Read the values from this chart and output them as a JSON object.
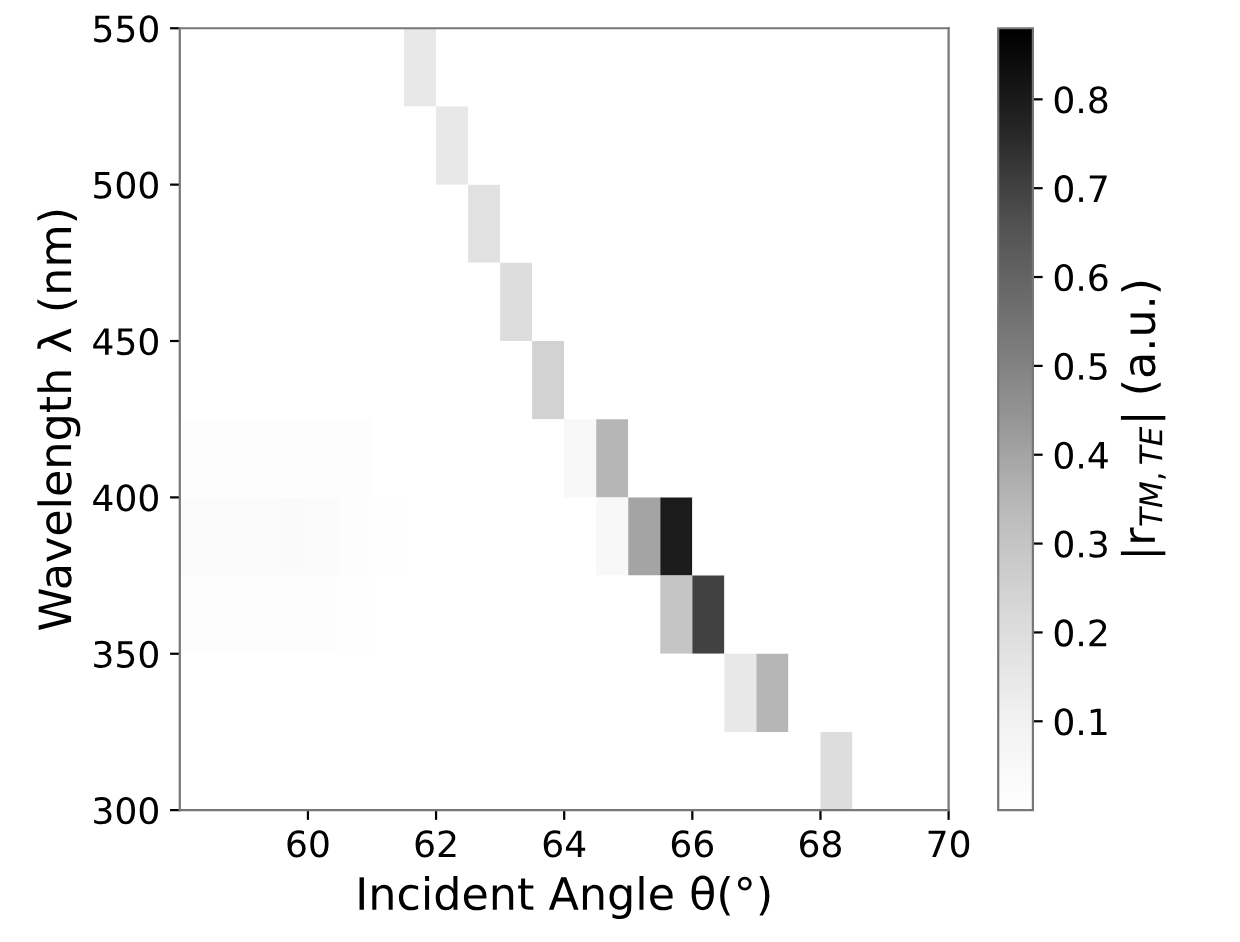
{
  "chart_data": {
    "type": "heatmap",
    "xlabel": "Incident Angle θ(°)",
    "ylabel": "Wavelength λ (nm)",
    "clabel": "|r$_{TM,TE}$| (a.u.)",
    "xlim": [
      58,
      70
    ],
    "xticks": [
      60,
      62,
      64,
      66,
      68,
      70
    ],
    "ylim": [
      300,
      550
    ],
    "yticks": [
      300,
      350,
      400,
      450,
      500,
      550
    ],
    "clim": [
      0,
      0.88
    ],
    "cticks": [
      0.1,
      0.2,
      0.3,
      0.4,
      0.5,
      0.6,
      0.7,
      0.8
    ],
    "cells": [
      [
        0,
        0,
        0,
        0,
        0,
        0,
        0,
        0.15,
        0,
        0,
        0,
        0,
        0,
        0,
        0,
        0,
        0,
        0,
        0,
        0,
        0,
        0,
        0,
        0
      ],
      [
        0,
        0,
        0,
        0,
        0,
        0,
        0,
        0,
        0.15,
        0,
        0,
        0,
        0,
        0,
        0,
        0,
        0,
        0,
        0,
        0,
        0,
        0,
        0,
        0
      ],
      [
        0,
        0,
        0,
        0,
        0,
        0,
        0,
        0,
        0,
        0.18,
        0,
        0,
        0,
        0,
        0,
        0,
        0,
        0,
        0,
        0,
        0,
        0,
        0,
        0
      ],
      [
        0,
        0,
        0,
        0,
        0,
        0,
        0,
        0,
        0,
        0,
        0.2,
        0,
        0,
        0,
        0,
        0,
        0,
        0,
        0,
        0,
        0,
        0,
        0,
        0
      ],
      [
        0,
        0,
        0,
        0,
        0,
        0,
        0,
        0,
        0,
        0,
        0,
        0.25,
        0,
        0,
        0,
        0,
        0,
        0,
        0,
        0,
        0,
        0,
        0,
        0
      ],
      [
        0.02,
        0.02,
        0.02,
        0.02,
        0.02,
        0.02,
        0,
        0,
        0,
        0,
        0,
        0,
        0.05,
        0.35,
        0,
        0,
        0,
        0,
        0,
        0,
        0,
        0,
        0,
        0
      ],
      [
        0.03,
        0.03,
        0.03,
        0.04,
        0.03,
        0.02,
        0.01,
        0,
        0,
        0,
        0,
        0,
        0,
        0.05,
        0.4,
        0.8,
        0,
        0,
        0,
        0,
        0,
        0,
        0,
        0
      ],
      [
        0.02,
        0.02,
        0.02,
        0.02,
        0.02,
        0.01,
        0,
        0,
        0,
        0,
        0,
        0,
        0,
        0,
        0,
        0.3,
        0.7,
        0,
        0,
        0,
        0,
        0,
        0,
        0
      ],
      [
        0,
        0,
        0,
        0,
        0,
        0,
        0,
        0,
        0,
        0,
        0,
        0,
        0,
        0,
        0,
        0,
        0,
        0.15,
        0.35,
        0,
        0,
        0,
        0,
        0
      ],
      [
        0,
        0,
        0,
        0,
        0,
        0,
        0,
        0,
        0,
        0,
        0,
        0,
        0,
        0,
        0,
        0,
        0,
        0,
        0,
        0,
        0.2,
        0,
        0,
        0
      ]
    ]
  }
}
